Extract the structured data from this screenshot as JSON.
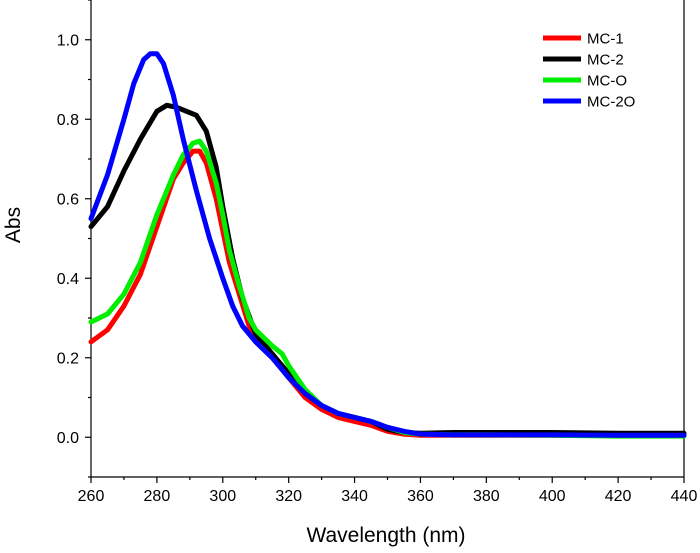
{
  "chart_data": {
    "type": "line",
    "title": "",
    "xlabel": "Wavelength (nm)",
    "ylabel": "Abs",
    "xlim": [
      260,
      440
    ],
    "ylim": [
      -0.1,
      1.1
    ],
    "xticks": [
      260,
      280,
      300,
      320,
      340,
      360,
      380,
      400,
      420,
      440
    ],
    "yticks": [
      0.0,
      0.2,
      0.4,
      0.6,
      0.8,
      1.0
    ],
    "xtick_labels": [
      "260",
      "280",
      "300",
      "320",
      "340",
      "360",
      "380",
      "400",
      "420",
      "440"
    ],
    "ytick_labels": [
      "0.0",
      "0.2",
      "0.4",
      "0.6",
      "0.8",
      "1.0"
    ],
    "legend_position": "top-right",
    "grid": false,
    "series": [
      {
        "name": "MC-1",
        "color": "#ff0000",
        "x": [
          260,
          265,
          270,
          275,
          280,
          285,
          288,
          291,
          293,
          295,
          298,
          300,
          302,
          305,
          308,
          310,
          315,
          320,
          325,
          330,
          335,
          340,
          345,
          350,
          355,
          360,
          370,
          380,
          400,
          420,
          440
        ],
        "y": [
          0.24,
          0.27,
          0.33,
          0.41,
          0.53,
          0.65,
          0.69,
          0.72,
          0.72,
          0.69,
          0.6,
          0.52,
          0.44,
          0.36,
          0.28,
          0.25,
          0.21,
          0.15,
          0.1,
          0.07,
          0.05,
          0.04,
          0.03,
          0.015,
          0.008,
          0.005,
          0.005,
          0.005,
          0.005,
          0.005,
          0.005
        ]
      },
      {
        "name": "MC-2",
        "color": "#000000",
        "x": [
          260,
          265,
          270,
          275,
          280,
          283,
          286,
          289,
          292,
          295,
          298,
          300,
          303,
          306,
          310,
          315,
          320,
          325,
          330,
          335,
          340,
          345,
          350,
          355,
          360,
          370,
          380,
          400,
          420,
          440
        ],
        "y": [
          0.53,
          0.58,
          0.67,
          0.75,
          0.82,
          0.835,
          0.83,
          0.82,
          0.81,
          0.77,
          0.68,
          0.58,
          0.45,
          0.35,
          0.26,
          0.21,
          0.16,
          0.11,
          0.08,
          0.06,
          0.05,
          0.04,
          0.02,
          0.012,
          0.01,
          0.012,
          0.012,
          0.012,
          0.01,
          0.01
        ]
      },
      {
        "name": "MC-O",
        "color": "#00ee00",
        "x": [
          260,
          265,
          270,
          275,
          280,
          285,
          288,
          291,
          293,
          295,
          298,
          300,
          302,
          305,
          308,
          310,
          315,
          318,
          320,
          325,
          330,
          335,
          340,
          345,
          350,
          355,
          360,
          370,
          380,
          400,
          420,
          440
        ],
        "y": [
          0.29,
          0.31,
          0.36,
          0.44,
          0.56,
          0.66,
          0.71,
          0.74,
          0.745,
          0.72,
          0.64,
          0.56,
          0.47,
          0.38,
          0.3,
          0.27,
          0.23,
          0.21,
          0.18,
          0.12,
          0.08,
          0.06,
          0.05,
          0.04,
          0.025,
          0.012,
          0.008,
          0.006,
          0.006,
          0.005,
          0.003,
          0.003
        ]
      },
      {
        "name": "MC-2O",
        "color": "#0000ff",
        "x": [
          260,
          265,
          270,
          273,
          276,
          278,
          280,
          282,
          285,
          288,
          292,
          296,
          300,
          303,
          306,
          310,
          315,
          320,
          325,
          330,
          335,
          340,
          345,
          350,
          355,
          360,
          370,
          380,
          400,
          420,
          440
        ],
        "y": [
          0.55,
          0.66,
          0.8,
          0.89,
          0.95,
          0.965,
          0.965,
          0.94,
          0.86,
          0.75,
          0.62,
          0.5,
          0.4,
          0.33,
          0.28,
          0.24,
          0.2,
          0.15,
          0.11,
          0.08,
          0.06,
          0.05,
          0.04,
          0.025,
          0.015,
          0.008,
          0.006,
          0.006,
          0.006,
          0.005,
          0.005
        ]
      }
    ]
  }
}
